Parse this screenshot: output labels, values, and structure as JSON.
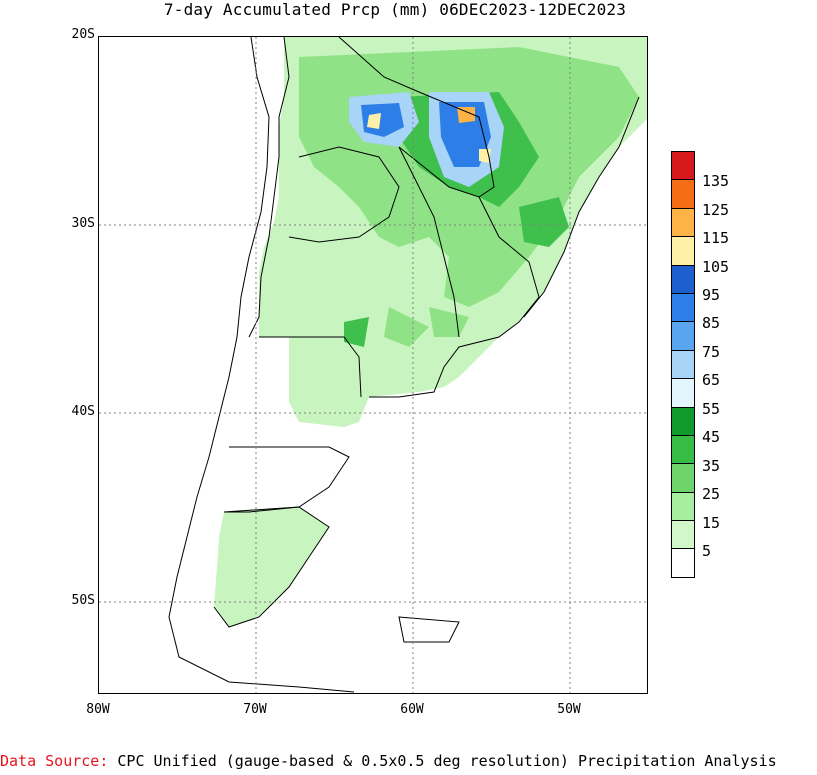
{
  "title": "7-day Accumulated Prcp (mm) 06DEC2023-12DEC2023",
  "map": {
    "lat_ticks": [
      "20S",
      "30S",
      "40S",
      "50S"
    ],
    "lon_ticks": [
      "80W",
      "70W",
      "60W",
      "50W"
    ],
    "colors": {
      "land_border": "#000000",
      "grid": "#808080"
    }
  },
  "legend": {
    "labels": [
      "135",
      "125",
      "115",
      "105",
      "95",
      "85",
      "75",
      "65",
      "55",
      "45",
      "35",
      "25",
      "15",
      "5"
    ],
    "colors": [
      "#d7191c",
      "#f46d17",
      "#fdb347",
      "#fff0a8",
      "#1e5fcf",
      "#2e7ee8",
      "#5aa5f0",
      "#a8d4f7",
      "#e4f6fd",
      "#119b2d",
      "#37bd45",
      "#6dd56b",
      "#a8eea0",
      "#d2f8c9",
      "#ffffff"
    ]
  },
  "footer": {
    "label": "Data Source:",
    "text": "CPC Unified (gauge-based & 0.5x0.5 deg resolution) Precipitation Analysis"
  }
}
